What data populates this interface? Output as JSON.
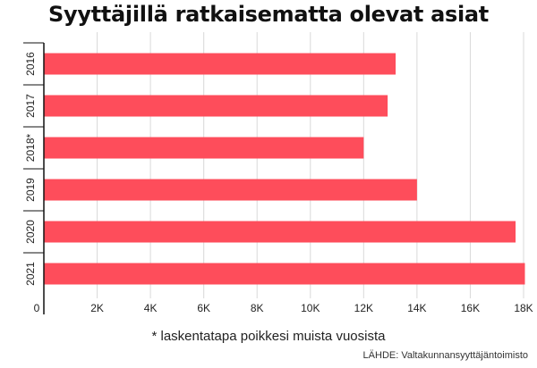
{
  "chart_data": {
    "type": "bar",
    "orientation": "horizontal",
    "title": "Syyttäjillä ratkaisematta olevat asiat",
    "categories": [
      "2016",
      "2017",
      "2018*",
      "2019",
      "2020",
      "2021"
    ],
    "values": [
      13200,
      12900,
      12000,
      14000,
      17700,
      18050
    ],
    "xlim": [
      0,
      18000
    ],
    "xticks": [
      0,
      2000,
      4000,
      6000,
      8000,
      10000,
      12000,
      14000,
      16000,
      18000
    ],
    "xtick_labels": [
      "0",
      "2K",
      "4K",
      "6K",
      "8K",
      "10K",
      "12K",
      "14K",
      "16K",
      "18K"
    ],
    "grid": true,
    "bar_color": "#fe4d5b",
    "footnote": "* laskentatapa poikkesi muista vuosista",
    "source": "LÄHDE: Valtakunnansyyttäjäntoimisto"
  }
}
